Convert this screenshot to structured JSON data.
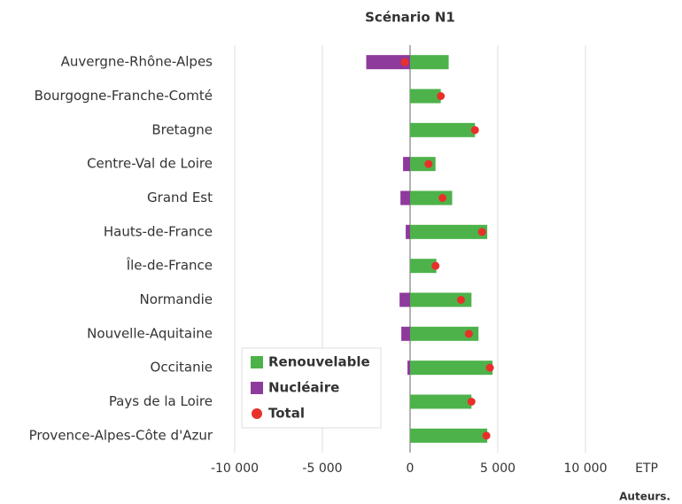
{
  "chart_data": {
    "type": "bar",
    "orientation": "horizontal",
    "title": "Scénario N1",
    "categories": [
      "Auvergne-Rhône-Alpes",
      "Bourgogne-Franche-Comté",
      "Bretagne",
      "Centre-Val de Loire",
      "Grand Est",
      "Hauts-de-France",
      "Île-de-France",
      "Normandie",
      "Nouvelle-Aquitaine",
      "Occitanie",
      "Pays de la Loire",
      "Provence-Alpes-Côte d'Azur"
    ],
    "series": [
      {
        "name": "Renouvelable",
        "color": "#4db24a",
        "kind": "bar",
        "values": [
          2200,
          1750,
          3700,
          1450,
          2400,
          4400,
          1500,
          3500,
          3900,
          4700,
          3500,
          4400
        ]
      },
      {
        "name": "Nucléaire",
        "color": "#8e3a9c",
        "kind": "bar",
        "values": [
          -2500,
          0,
          0,
          -400,
          -550,
          -250,
          0,
          -600,
          -500,
          -150,
          0,
          0
        ]
      },
      {
        "name": "Total",
        "color": "#e8302a",
        "kind": "dot",
        "values": [
          -300,
          1750,
          3700,
          1050,
          1850,
          4100,
          1450,
          2900,
          3350,
          4550,
          3500,
          4350
        ]
      }
    ],
    "xlim": [
      -10000,
      10000
    ],
    "xticks": [
      {
        "value": -10000,
        "label": "-10 000"
      },
      {
        "value": -5000,
        "label": "-5 000"
      },
      0,
      {
        "value": 5000,
        "label": "5 000"
      },
      {
        "value": 10000,
        "label": "10 000"
      }
    ],
    "x_label": "ETP",
    "grid": true,
    "legend": "lower left",
    "source": "Auteurs."
  }
}
